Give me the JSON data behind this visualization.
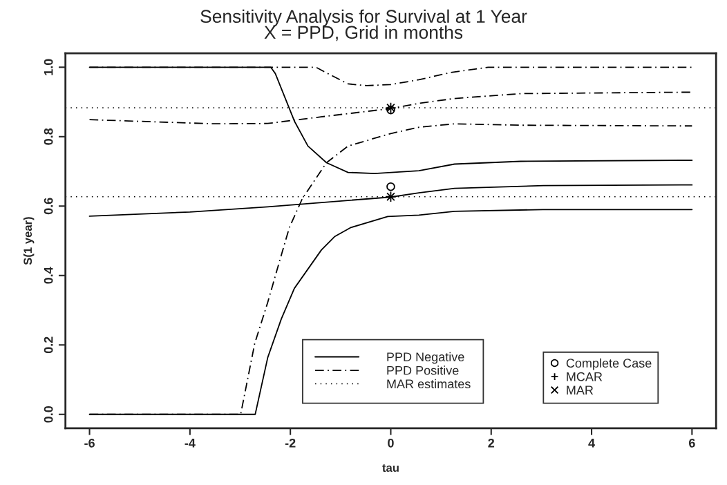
{
  "chart_data": {
    "type": "line",
    "title": "Sensitivity Analysis for Survival at 1 Year",
    "subtitle": "X = PPD, Grid in months",
    "xlabel": "tau",
    "ylabel": "S(1 year)",
    "xlim": [
      -6.48,
      6.48
    ],
    "ylim": [
      -0.04,
      1.04
    ],
    "xticks": [
      -6,
      -4,
      -2,
      0,
      2,
      4,
      6
    ],
    "yticks": [
      {
        "value": 0,
        "label": "0.0"
      },
      0.2,
      0.4,
      0.6,
      0.8,
      {
        "value": 1,
        "label": "1.0"
      }
    ],
    "grid": false,
    "legend": "bottom",
    "series": [
      {
        "name": "PPD Negative",
        "color": "#000000",
        "line_style": "solid",
        "x": [
          -6,
          -2.39,
          -2.3,
          -1.92,
          -1.65,
          -1.28,
          -0.85,
          -0.32,
          0.56,
          1.27,
          2.59,
          5.78,
          6
        ],
        "values": [
          1.0,
          1.0,
          0.982,
          0.845,
          0.773,
          0.725,
          0.697,
          0.694,
          0.702,
          0.721,
          0.729,
          0.732,
          0.732
        ]
      },
      {
        "color": "#000000",
        "line_style": "solid",
        "x": [
          -6,
          -4,
          -2.45,
          0,
          0.56,
          1.27,
          3.04,
          5.78,
          6
        ],
        "values": [
          0.571,
          0.583,
          0.598,
          0.626,
          0.638,
          0.651,
          0.659,
          0.661,
          0.661
        ]
      },
      {
        "color": "#000000",
        "line_style": "solid",
        "x": [
          -6,
          -2.7,
          -2.45,
          -2.18,
          -1.92,
          -1.38,
          -1.12,
          -0.8,
          -0.06,
          0.56,
          1.27,
          3.03,
          6
        ],
        "values": [
          0,
          0,
          0.164,
          0.275,
          0.363,
          0.474,
          0.512,
          0.538,
          0.57,
          0.574,
          0.585,
          0.59,
          0.59
        ]
      },
      {
        "name": "PPD Positive",
        "color": "#000000",
        "line_style": "dashdot",
        "x": [
          -6,
          -1.49,
          -1.23,
          -0.85,
          -0.48,
          0,
          0.56,
          1.2,
          1.94,
          6
        ],
        "values": [
          1.0,
          1.0,
          0.98,
          0.952,
          0.947,
          0.95,
          0.964,
          0.985,
          1.0,
          1.0
        ]
      },
      {
        "color": "#000000",
        "line_style": "dashdot",
        "x": [
          -6,
          -3.51,
          -2.45,
          -1.39,
          0,
          0.56,
          1.27,
          2.59,
          5.78,
          6
        ],
        "values": [
          0.849,
          0.837,
          0.838,
          0.857,
          0.881,
          0.896,
          0.91,
          0.924,
          0.928,
          0.928
        ]
      },
      {
        "color": "#000000",
        "line_style": "dashdot",
        "x": [
          -6,
          -2.99,
          -2.71,
          -2.45,
          -2.18,
          -2.02,
          -1.76,
          -1.28,
          -0.85,
          0,
          0.56,
          1.27,
          2.59,
          5.78,
          6
        ],
        "values": [
          0,
          0,
          0.204,
          0.323,
          0.459,
          0.538,
          0.622,
          0.725,
          0.773,
          0.809,
          0.827,
          0.837,
          0.833,
          0.831,
          0.831
        ]
      },
      {
        "name": "Complete Case",
        "type": "scatter",
        "marker": "circle",
        "color": "#000000",
        "x": [
          0,
          0
        ],
        "values": [
          0.877,
          0.656
        ]
      },
      {
        "name": "MCAR",
        "type": "scatter",
        "marker": "plus",
        "color": "#000000",
        "x": [
          0,
          0
        ],
        "values": [
          0.883,
          0.627
        ]
      },
      {
        "name": "MAR",
        "type": "scatter",
        "marker": "cross",
        "color": "#000000",
        "x": [
          0,
          0
        ],
        "values": [
          0.883,
          0.627
        ]
      }
    ],
    "ref_lines": [
      {
        "axis": "y",
        "value": 0.883,
        "label": "MAR estimates",
        "line_style": "dotted",
        "color": "#000000"
      },
      {
        "axis": "y",
        "value": 0.627,
        "line_style": "dotted",
        "color": "#000000"
      }
    ]
  }
}
